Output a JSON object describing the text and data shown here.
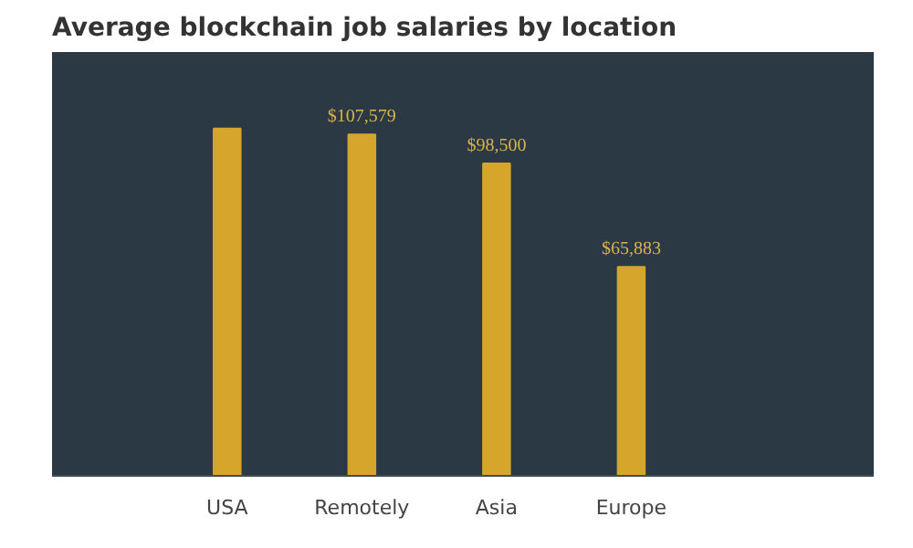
{
  "chart_data": {
    "type": "bar",
    "title": "Average blockchain job salaries by location",
    "categories": [
      "USA",
      "Remotely",
      "Asia",
      "Europe"
    ],
    "values": [
      109500,
      107579,
      98500,
      65883
    ],
    "value_labels": [
      null,
      "$107,579",
      "$98,500",
      "$65,883"
    ],
    "color": "#d6a62c",
    "grid": false
  }
}
